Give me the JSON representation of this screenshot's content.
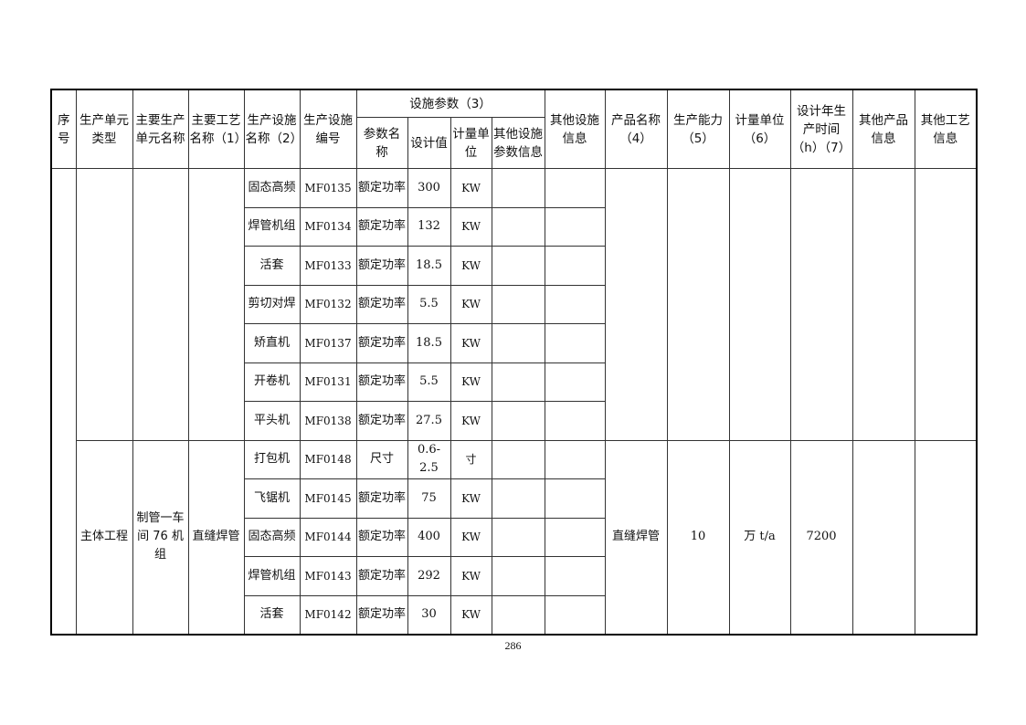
{
  "header": {
    "seq": "序号",
    "unit_type": "生产单元类型",
    "unit_name": "主要生产单元名称",
    "process_name": "主要工艺名称（1）",
    "facility_name": "生产设施名称（2）",
    "facility_code": "生产设施编号",
    "params_group": "设施参数（3）",
    "param_name": "参数名称",
    "design_value": "设计值",
    "param_unit": "计量单位",
    "other_param_info": "其他设施参数信息",
    "other_facility_info": "其他设施信息",
    "product_name": "产品名称（4）",
    "capacity": "生产能力（5）",
    "capacity_unit": "计量单位（6）",
    "design_hours": "设计年生产时间（h）（7）",
    "other_product_info": "其他产品信息",
    "other_process_info": "其他工艺信息"
  },
  "groups": [
    {
      "unit_type": "",
      "unit_name": "",
      "process_name": "",
      "product_name": "",
      "capacity": "",
      "capacity_unit": "",
      "design_hours": "",
      "rows": [
        {
          "facility": "固态高频",
          "code": "MF0135",
          "param": "额定功率",
          "value": "300",
          "unit": "KW"
        },
        {
          "facility": "焊管机组",
          "code": "MF0134",
          "param": "额定功率",
          "value": "132",
          "unit": "KW"
        },
        {
          "facility": "活套",
          "code": "MF0133",
          "param": "额定功率",
          "value": "18.5",
          "unit": "KW"
        },
        {
          "facility": "剪切对焊",
          "code": "MF0132",
          "param": "额定功率",
          "value": "5.5",
          "unit": "KW"
        },
        {
          "facility": "矫直机",
          "code": "MF0137",
          "param": "额定功率",
          "value": "18.5",
          "unit": "KW"
        },
        {
          "facility": "开卷机",
          "code": "MF0131",
          "param": "额定功率",
          "value": "5.5",
          "unit": "KW"
        },
        {
          "facility": "平头机",
          "code": "MF0138",
          "param": "额定功率",
          "value": "27.5",
          "unit": "KW"
        }
      ]
    },
    {
      "unit_type": "主体工程",
      "unit_name": "制管一车间 76 机组",
      "process_name": "直缝焊管",
      "product_name": "直缝焊管",
      "capacity": "10",
      "capacity_unit": "万 t/a",
      "design_hours": "7200",
      "rows": [
        {
          "facility": "打包机",
          "code": "MF0148",
          "param": "尺寸",
          "value": "0.6-2.5",
          "unit": "寸"
        },
        {
          "facility": "飞锯机",
          "code": "MF0145",
          "param": "额定功率",
          "value": "75",
          "unit": "KW"
        },
        {
          "facility": "固态高频",
          "code": "MF0144",
          "param": "额定功率",
          "value": "400",
          "unit": "KW"
        },
        {
          "facility": "焊管机组",
          "code": "MF0143",
          "param": "额定功率",
          "value": "292",
          "unit": "KW"
        },
        {
          "facility": "活套",
          "code": "MF0142",
          "param": "额定功率",
          "value": "30",
          "unit": "KW"
        }
      ]
    }
  ],
  "page_number": "286"
}
